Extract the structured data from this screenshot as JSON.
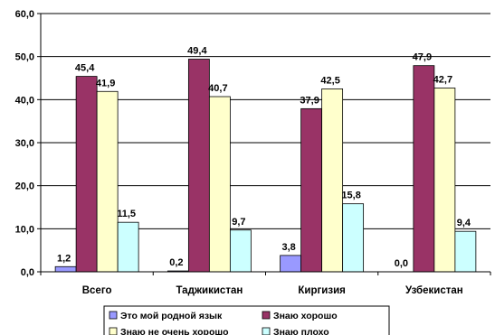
{
  "chart_data": {
    "type": "bar",
    "categories": [
      "Всего",
      "Таджикистан",
      "Киргизия",
      "Узбекистан"
    ],
    "series": [
      {
        "name": "Это мой родной язык",
        "values": [
          1.2,
          0.2,
          3.8,
          0.0
        ],
        "labels": [
          "1,2",
          "0,2",
          "3,8",
          "0,0"
        ],
        "color": "#9999ff"
      },
      {
        "name": "Знаю хорошо",
        "values": [
          45.4,
          49.4,
          37.9,
          47.9
        ],
        "labels": [
          "45,4",
          "49,4",
          "37,9",
          "47,9"
        ],
        "color": "#993366"
      },
      {
        "name": "Знаю не очень хорошо",
        "values": [
          41.9,
          40.7,
          42.5,
          42.7
        ],
        "labels": [
          "41,9",
          "40,7",
          "42,5",
          "42,7"
        ],
        "color": "#ffffcc"
      },
      {
        "name": "Знаю плохо",
        "values": [
          11.5,
          9.7,
          15.8,
          9.4
        ],
        "labels": [
          "11,5",
          "9,7",
          "15,8",
          "9,4"
        ],
        "color": "#ccffff"
      }
    ],
    "y_ticks": [
      "0,0",
      "10,0",
      "20,0",
      "30,0",
      "40,0",
      "50,0",
      "60,0"
    ],
    "ylim": [
      0,
      60
    ],
    "grid": true,
    "legend_position": "bottom"
  }
}
